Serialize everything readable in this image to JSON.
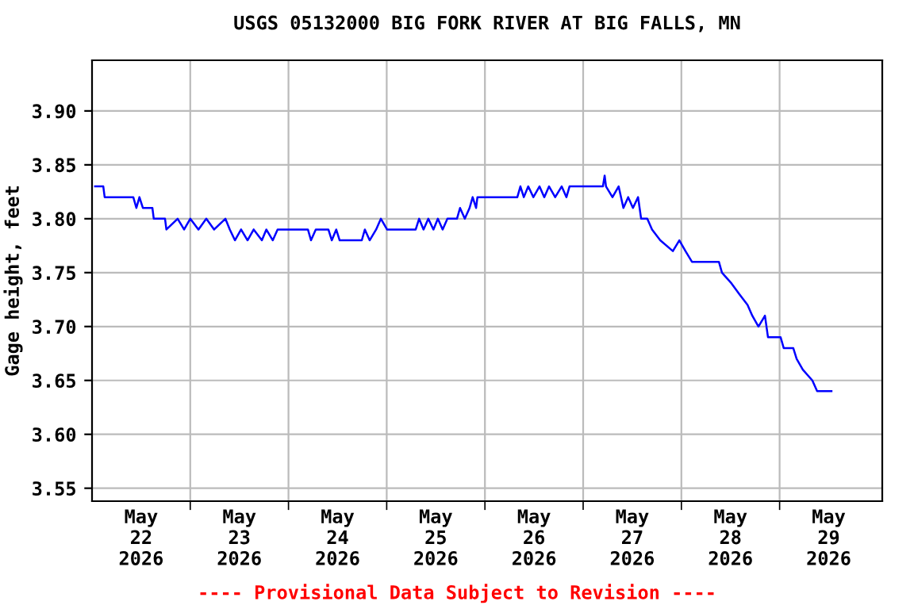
{
  "chart_data": {
    "type": "line",
    "title": "USGS 05132000 BIG FORK RIVER AT BIG FALLS, MN",
    "ylabel": "Gage height, feet",
    "annotations": [
      "---- Provisional Data Subject to Revision ----"
    ],
    "x": [
      "2026-05-22T00:45",
      "2026-05-22T02:45",
      "2026-05-22T03:05",
      "2026-05-22T10:05",
      "2026-05-22T10:50",
      "2026-05-22T11:35",
      "2026-05-22T12:25",
      "2026-05-22T14:45",
      "2026-05-22T15:05",
      "2026-05-22T17:50",
      "2026-05-22T18:10",
      "2026-05-22T20:55",
      "2026-05-22T22:30",
      "2026-05-23T00:00",
      "2026-05-23T02:00",
      "2026-05-23T03:55",
      "2026-05-23T05:50",
      "2026-05-23T08:35",
      "2026-05-23T09:40",
      "2026-05-23T10:55",
      "2026-05-23T12:25",
      "2026-05-23T14:00",
      "2026-05-23T15:30",
      "2026-05-23T17:30",
      "2026-05-23T18:35",
      "2026-05-23T20:10",
      "2026-05-23T21:20",
      "2026-05-24T04:45",
      "2026-05-24T05:30",
      "2026-05-24T06:40",
      "2026-05-24T09:45",
      "2026-05-24T10:35",
      "2026-05-24T11:40",
      "2026-05-24T12:30",
      "2026-05-24T17:55",
      "2026-05-24T18:40",
      "2026-05-24T19:50",
      "2026-05-24T21:25",
      "2026-05-24T22:35",
      "2026-05-25T00:05",
      "2026-05-25T07:05",
      "2026-05-25T07:55",
      "2026-05-25T09:00",
      "2026-05-25T10:10",
      "2026-05-25T11:25",
      "2026-05-25T12:30",
      "2026-05-25T13:40",
      "2026-05-25T14:50",
      "2026-05-25T17:10",
      "2026-05-25T17:55",
      "2026-05-25T19:05",
      "2026-05-25T20:15",
      "2026-05-25T21:00",
      "2026-05-25T21:50",
      "2026-05-25T22:10",
      "2026-05-26T07:55",
      "2026-05-26T08:40",
      "2026-05-26T09:30",
      "2026-05-26T10:35",
      "2026-05-26T11:50",
      "2026-05-26T13:20",
      "2026-05-26T14:30",
      "2026-05-26T15:40",
      "2026-05-26T17:10",
      "2026-05-26T18:45",
      "2026-05-26T19:55",
      "2026-05-26T20:40",
      "2026-05-27T04:50",
      "2026-05-27T05:15",
      "2026-05-27T05:35",
      "2026-05-27T07:10",
      "2026-05-27T08:40",
      "2026-05-27T09:50",
      "2026-05-27T11:00",
      "2026-05-27T12:10",
      "2026-05-27T13:25",
      "2026-05-27T14:10",
      "2026-05-27T15:40",
      "2026-05-27T16:50",
      "2026-05-27T18:50",
      "2026-05-27T21:55",
      "2026-05-27T23:30",
      "2026-05-28T01:00",
      "2026-05-28T02:35",
      "2026-05-28T09:10",
      "2026-05-28T09:55",
      "2026-05-28T12:15",
      "2026-05-28T14:10",
      "2026-05-28T16:10",
      "2026-05-28T17:20",
      "2026-05-28T18:50",
      "2026-05-28T20:25",
      "2026-05-28T21:10",
      "2026-05-29T00:15",
      "2026-05-29T01:00",
      "2026-05-29T03:20",
      "2026-05-29T04:10",
      "2026-05-29T05:40",
      "2026-05-29T08:00",
      "2026-05-29T09:10",
      "2026-05-29T12:40"
    ],
    "series": [
      {
        "color": "#0000ff",
        "values": [
          3.83,
          3.83,
          3.82,
          3.82,
          3.81,
          3.82,
          3.81,
          3.81,
          3.8,
          3.8,
          3.79,
          3.8,
          3.79,
          3.8,
          3.79,
          3.8,
          3.79,
          3.8,
          3.79,
          3.78,
          3.79,
          3.78,
          3.79,
          3.78,
          3.79,
          3.78,
          3.79,
          3.79,
          3.78,
          3.79,
          3.79,
          3.78,
          3.79,
          3.78,
          3.78,
          3.79,
          3.78,
          3.79,
          3.8,
          3.79,
          3.79,
          3.8,
          3.79,
          3.8,
          3.79,
          3.8,
          3.79,
          3.8,
          3.8,
          3.81,
          3.8,
          3.81,
          3.82,
          3.81,
          3.82,
          3.82,
          3.83,
          3.82,
          3.83,
          3.82,
          3.83,
          3.82,
          3.83,
          3.82,
          3.83,
          3.82,
          3.83,
          3.83,
          3.84,
          3.83,
          3.82,
          3.83,
          3.81,
          3.82,
          3.81,
          3.82,
          3.8,
          3.8,
          3.79,
          3.78,
          3.77,
          3.78,
          3.77,
          3.76,
          3.76,
          3.75,
          3.74,
          3.73,
          3.72,
          3.71,
          3.7,
          3.71,
          3.69,
          3.69,
          3.68,
          3.68,
          3.67,
          3.66,
          3.65,
          3.64,
          3.64
        ]
      }
    ],
    "xlim": [
      "2026-05-22T00:00",
      "2026-05-30T01:05"
    ],
    "xticks": [
      {
        "value": "2026-05-22T12:00",
        "label": "May\n22\n2026"
      },
      {
        "value": "2026-05-23T12:00",
        "label": "May\n23\n2026"
      },
      {
        "value": "2026-05-24T12:00",
        "label": "May\n24\n2026"
      },
      {
        "value": "2026-05-25T12:00",
        "label": "May\n25\n2026"
      },
      {
        "value": "2026-05-26T12:00",
        "label": "May\n26\n2026"
      },
      {
        "value": "2026-05-27T12:00",
        "label": "May\n27\n2026"
      },
      {
        "value": "2026-05-28T12:00",
        "label": "May\n28\n2026"
      },
      {
        "value": "2026-05-29T12:00",
        "label": "May\n29\n2026"
      },
      {
        "value": "2026-05-23T00:00",
        "label": null
      },
      {
        "value": "2026-05-24T00:00",
        "label": null
      },
      {
        "value": "2026-05-25T00:00",
        "label": null
      },
      {
        "value": "2026-05-26T00:00",
        "label": null
      },
      {
        "value": "2026-05-27T00:00",
        "label": null
      },
      {
        "value": "2026-05-28T00:00",
        "label": null
      },
      {
        "value": "2026-05-29T00:00",
        "label": null
      }
    ],
    "ylim": [
      3.538,
      3.947
    ],
    "yticks": [
      {
        "value": 3.55,
        "label": "3.55"
      },
      {
        "value": 3.6,
        "label": "3.60"
      },
      {
        "value": 3.65,
        "label": "3.65"
      },
      {
        "value": 3.7,
        "label": "3.70"
      },
      {
        "value": 3.75,
        "label": "3.75"
      },
      {
        "value": 3.8,
        "label": "3.80"
      },
      {
        "value": 3.85,
        "label": "3.85"
      },
      {
        "value": 3.9,
        "label": "3.90"
      }
    ],
    "grid": true,
    "legend": false,
    "marker": "none",
    "line_style": "solid"
  }
}
